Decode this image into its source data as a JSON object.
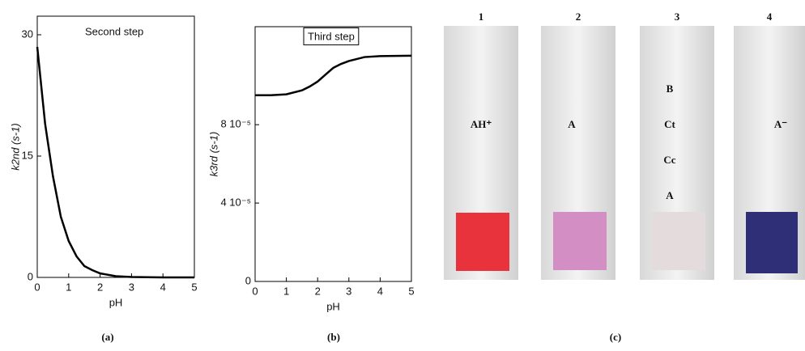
{
  "chart_data": [
    {
      "type": "line",
      "annotation": "Second step",
      "xlabel": "pH",
      "ylabel": "k2nd (s-1)",
      "x": [
        0,
        0.25,
        0.5,
        0.75,
        1,
        1.25,
        1.5,
        1.75,
        2,
        2.5,
        3,
        4,
        5
      ],
      "series": [
        {
          "color": "#000000",
          "values": [
            28.5,
            19,
            12.5,
            7.5,
            4.5,
            2.6,
            1.4,
            0.9,
            0.5,
            0.15,
            0.05,
            0,
            0
          ]
        }
      ],
      "xlim": [
        0,
        5
      ],
      "xticks": [
        0,
        1,
        2,
        3,
        4,
        5
      ],
      "ylim": [
        0,
        32.3
      ],
      "yticks": [
        0,
        15,
        30
      ],
      "grid": false
    },
    {
      "type": "line",
      "annotation": "Third step",
      "xlabel": "pH",
      "ylabel": "k3rd (s-1)",
      "x": [
        0,
        0.5,
        1,
        1.5,
        1.75,
        2,
        2.25,
        2.5,
        2.75,
        3,
        3.5,
        4,
        5
      ],
      "series": [
        {
          "color": "#000000",
          "values": [
            9.5e-05,
            9.5e-05,
            9.55e-05,
            9.75e-05,
            9.95e-05,
            0.000102,
            0.0001055,
            0.000109,
            0.000111,
            0.0001125,
            0.0001145,
            0.000115,
            0.0001152
          ]
        }
      ],
      "xlim": [
        0,
        5
      ],
      "xticks": [
        0,
        1,
        2,
        3,
        4,
        5
      ],
      "ylim": [
        0,
        0.00013
      ],
      "yticks": [
        0,
        {
          "value": 4e-05,
          "label": "4 10⁻⁵"
        },
        {
          "value": 8e-05,
          "label": "8 10⁻⁵"
        }
      ],
      "grid": false
    }
  ],
  "panels": [
    "(a)",
    "(b)",
    "(c)"
  ],
  "photos": [
    {
      "number": "1",
      "labels": [
        "AH⁺"
      ]
    },
    {
      "number": "2",
      "labels": [
        "A"
      ]
    },
    {
      "number": "3",
      "labels": [
        "B",
        "Ct",
        "Cc",
        "A"
      ]
    },
    {
      "number": "4",
      "labels": [
        "A⁻"
      ]
    }
  ]
}
